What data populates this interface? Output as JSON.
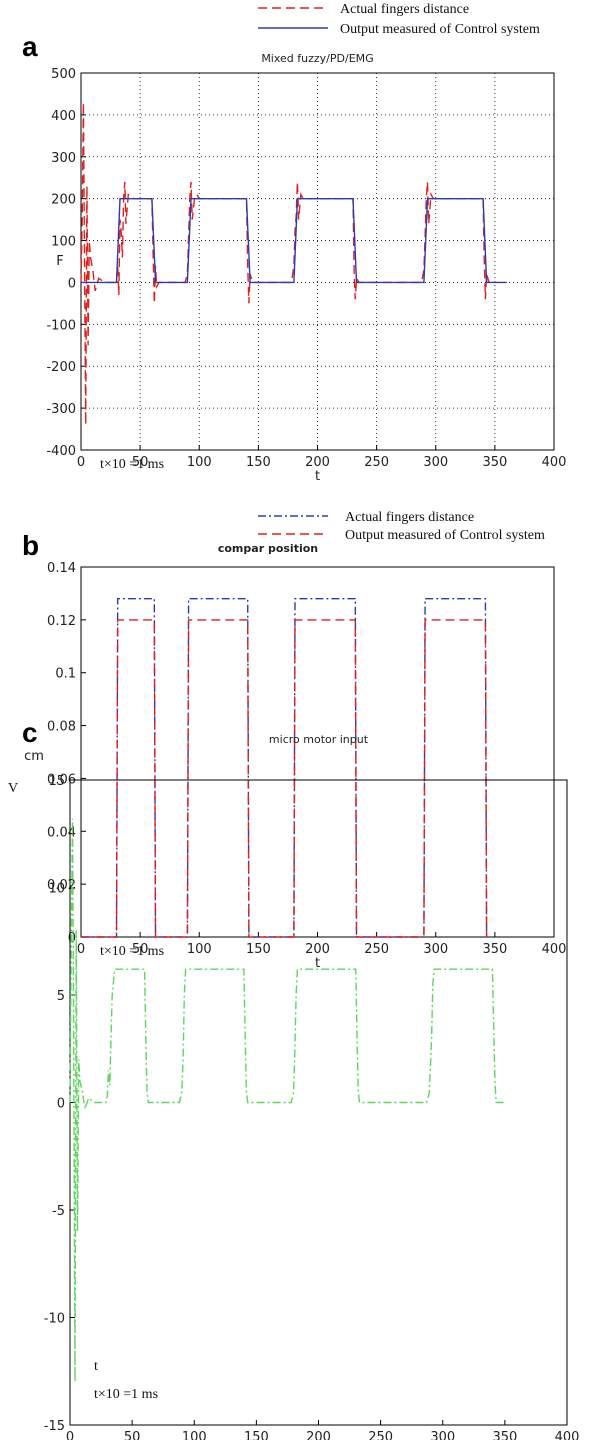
{
  "chart_data": [
    {
      "panel": "a",
      "type": "line",
      "title": "Mixed fuzzy/PD/EMG",
      "xlabel": "t",
      "ylabel": "F",
      "note": "t×10 =1 ms",
      "xlim": [
        0,
        400
      ],
      "ylim": [
        -400,
        500
      ],
      "xticks": [
        0,
        50,
        100,
        150,
        200,
        250,
        300,
        350,
        400
      ],
      "yticks": [
        -400,
        -300,
        -200,
        -100,
        0,
        100,
        200,
        300,
        400,
        500
      ],
      "grid": true,
      "legend_placement": "top-right, above plot",
      "series": [
        {
          "name": "Actual fingers distance",
          "color": "#e0201d",
          "style": "dashed",
          "x": [
            0,
            1,
            2,
            3,
            4,
            5,
            6,
            7,
            8,
            10,
            12,
            15,
            20,
            25,
            28,
            30,
            31,
            32,
            33,
            34,
            35,
            36,
            37,
            38,
            40,
            45,
            50,
            55,
            60,
            61,
            62,
            63,
            64,
            66,
            70,
            80,
            88,
            90,
            91,
            92,
            93,
            94,
            96,
            98,
            100,
            110,
            120,
            130,
            140,
            141,
            142,
            143,
            145,
            150,
            160,
            170,
            178,
            180,
            181,
            182,
            183,
            184,
            186,
            188,
            190,
            200,
            210,
            220,
            230,
            231,
            232,
            233,
            235,
            240,
            260,
            280,
            288,
            290,
            291,
            292,
            293,
            294,
            296,
            298,
            300,
            310,
            320,
            330,
            340,
            341,
            342,
            343,
            345,
            350
          ],
          "y": [
            0,
            150,
            430,
            60,
            -340,
            230,
            -150,
            100,
            60,
            30,
            -20,
            10,
            0,
            0,
            0,
            0,
            40,
            -30,
            150,
            120,
            60,
            200,
            240,
            140,
            210,
            200,
            200,
            200,
            200,
            70,
            -50,
            40,
            -10,
            0,
            0,
            0,
            0,
            20,
            110,
            200,
            240,
            150,
            200,
            210,
            200,
            200,
            200,
            200,
            200,
            40,
            -50,
            20,
            0,
            0,
            0,
            0,
            0,
            40,
            120,
            160,
            240,
            150,
            210,
            200,
            200,
            200,
            200,
            200,
            200,
            20,
            -40,
            10,
            0,
            0,
            0,
            0,
            0,
            30,
            110,
            200,
            240,
            140,
            210,
            200,
            200,
            200,
            200,
            200,
            200,
            60,
            -40,
            20,
            0,
            0
          ]
        },
        {
          "name": "Output measured of Control system",
          "color": "#2a3bb7",
          "style": "solid",
          "x": [
            0,
            30,
            33,
            60,
            63,
            90,
            93,
            140,
            143,
            180,
            183,
            230,
            233,
            290,
            293,
            340,
            343,
            360
          ],
          "y": [
            0,
            0,
            200,
            200,
            0,
            0,
            200,
            200,
            0,
            0,
            200,
            200,
            0,
            0,
            200,
            200,
            0,
            0
          ]
        }
      ]
    },
    {
      "panel": "b",
      "type": "line",
      "title": "compar position",
      "xlabel": "t",
      "ylabel": "cm",
      "note": "t×10 =1 ms",
      "xlim": [
        0,
        400
      ],
      "ylim": [
        0,
        0.14
      ],
      "xticks": [
        0,
        50,
        100,
        150,
        200,
        250,
        300,
        350,
        400
      ],
      "yticks": [
        0,
        0.02,
        0.04,
        0.06,
        0.08,
        0.1,
        0.12,
        0.14
      ],
      "ytick_labels": [
        "0",
        "0.02",
        "0.04",
        "0.06",
        "0.08",
        "0.1",
        "0.12",
        "0.14"
      ],
      "grid": false,
      "legend_placement": "top-right, above plot",
      "series": [
        {
          "name": "Actual fingers distance",
          "color": "#2a3bb7",
          "style": "dash-dot",
          "x": [
            0,
            30,
            31,
            62,
            63,
            90,
            91,
            141,
            142,
            180,
            181,
            232,
            233,
            290,
            291,
            342,
            343
          ],
          "y": [
            0,
            0,
            0.128,
            0.128,
            0,
            0,
            0.128,
            0.128,
            0,
            0,
            0.128,
            0.128,
            0,
            0,
            0.128,
            0.128,
            0
          ]
        },
        {
          "name": "Output measured of Control system",
          "color": "#e0201d",
          "style": "dashed",
          "x": [
            0,
            30,
            31,
            62,
            63,
            90,
            91,
            141,
            142,
            180,
            181,
            232,
            233,
            290,
            291,
            342,
            343
          ],
          "y": [
            0,
            0,
            0.12,
            0.12,
            0,
            0,
            0.12,
            0.12,
            0,
            0,
            0.12,
            0.12,
            0,
            0,
            0.12,
            0.12,
            0
          ]
        }
      ]
    },
    {
      "panel": "c",
      "type": "line",
      "title": "micro motor input",
      "xlabel": "t",
      "ylabel": "V",
      "note": "t×10 =1 ms",
      "xlim": [
        0,
        400
      ],
      "ylim": [
        -15,
        15
      ],
      "xticks": [
        0,
        50,
        100,
        150,
        200,
        250,
        300,
        350,
        400
      ],
      "yticks": [
        -15,
        -10,
        -5,
        0,
        5,
        10,
        15
      ],
      "grid": false,
      "series": [
        {
          "color": "#5ed65e",
          "style": "dash-dot",
          "x": [
            0,
            1,
            2,
            3,
            4,
            5,
            6,
            7,
            8,
            10,
            12,
            15,
            20,
            27,
            29,
            30,
            31,
            32,
            33,
            34,
            36,
            40,
            50,
            60,
            61,
            62,
            63,
            65,
            70,
            80,
            88,
            90,
            91,
            92,
            93,
            95,
            100,
            120,
            140,
            141,
            142,
            143,
            145,
            150,
            170,
            178,
            180,
            181,
            182,
            183,
            185,
            190,
            210,
            230,
            231,
            232,
            233,
            235,
            250,
            270,
            287,
            289,
            290,
            291,
            292,
            293,
            295,
            300,
            320,
            340,
            341,
            342,
            343,
            345,
            350
          ],
          "y": [
            0,
            7,
            13.2,
            3,
            -13,
            8,
            -6,
            2,
            1,
            0.5,
            -0.3,
            0.2,
            0,
            0,
            0,
            0.3,
            1.5,
            0.8,
            3,
            5,
            6.2,
            6.2,
            6.2,
            6.2,
            3,
            0.5,
            0,
            0,
            0,
            0,
            0,
            0.5,
            2,
            5,
            6.2,
            6.2,
            6.2,
            6.2,
            6.2,
            3,
            0.5,
            0,
            0,
            0,
            0,
            0,
            0.5,
            2.5,
            5,
            6.2,
            6.2,
            6.2,
            6.2,
            6.2,
            3,
            0.5,
            0,
            0,
            0,
            0,
            0,
            0.4,
            1.5,
            3,
            5.5,
            6.2,
            6.2,
            6.2,
            6.2,
            6.2,
            3.5,
            1,
            0,
            0,
            0
          ]
        }
      ]
    }
  ]
}
